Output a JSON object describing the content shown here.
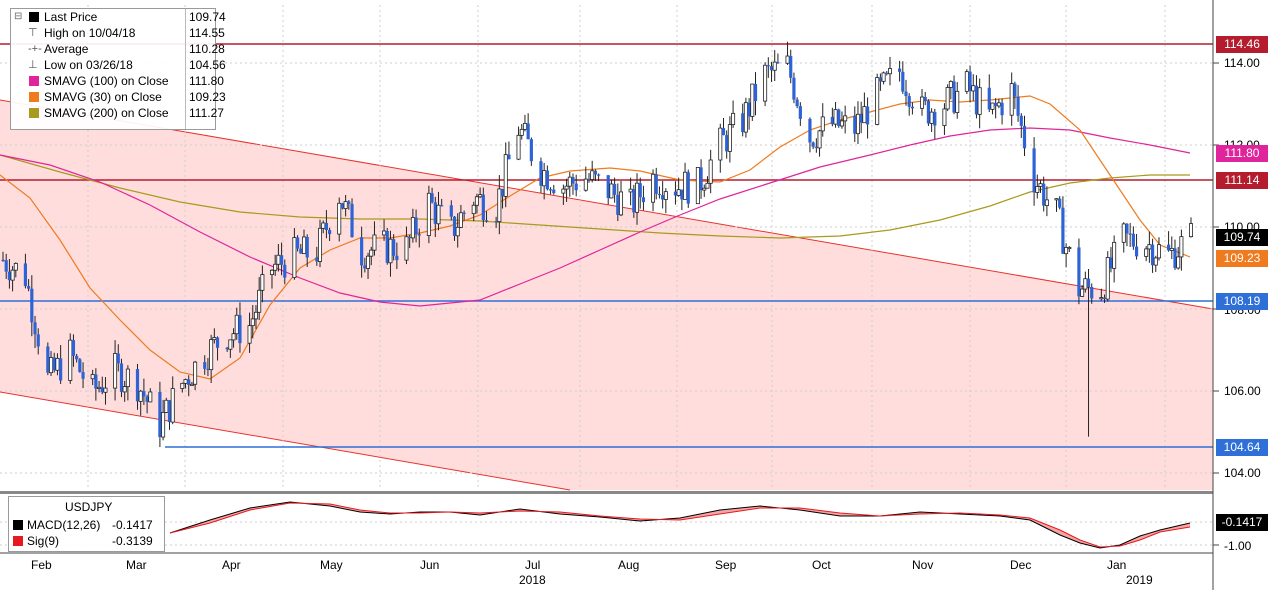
{
  "legend": {
    "last_price": {
      "label": "Last Price",
      "value": "109.74",
      "color": "#000000"
    },
    "high": {
      "label": "High on 10/04/18",
      "value": "114.55"
    },
    "average": {
      "label": "Average",
      "value": "110.28"
    },
    "low": {
      "label": "Low on 03/26/18",
      "value": "104.56"
    },
    "sma100": {
      "label": "SMAVG (100)  on Close",
      "value": "111.80",
      "color": "#e0249c"
    },
    "sma30": {
      "label": "SMAVG (30)  on Close",
      "value": "109.23",
      "color": "#f07a1e"
    },
    "sma200": {
      "label": "SMAVG (200)  on Close",
      "value": "111.27",
      "color": "#a89a1a"
    }
  },
  "macd_legend": {
    "title": "USDJPY",
    "macd": {
      "label": "MACD(12,26)",
      "value": "-0.1417",
      "color": "#000000"
    },
    "sig": {
      "label": "Sig(9)",
      "value": "-0.3139",
      "color": "#e8191e"
    }
  },
  "y_axis": {
    "ticks": [
      "114.00",
      "106.00",
      "104.00"
    ],
    "partial_ticks": [
      "112.00",
      "110.00",
      "108.00"
    ],
    "macd_ticks": [
      "-1.00"
    ]
  },
  "tags": {
    "h_114_46": "114.46",
    "sma100": "111.80",
    "h_111_14": "111.14",
    "last": "109.74",
    "sma30": "109.23",
    "h_108_19": "108.19",
    "h_104_64": "104.64",
    "macd": "-0.1417"
  },
  "x_axis": {
    "months": [
      "Feb",
      "Mar",
      "Apr",
      "May",
      "Jun",
      "Jul",
      "Aug",
      "Sep",
      "Oct",
      "Nov",
      "Dec",
      "Jan"
    ],
    "years": [
      "2018",
      "2019"
    ]
  },
  "colors": {
    "candle": "#2e63d6",
    "resistance": "#b51d2e",
    "support": "#2f6fd8",
    "channel_fill": "#ffd7d7",
    "channel_line": "#e8332c"
  },
  "chart_data": {
    "type": "candlestick",
    "instrument": "USDJPY",
    "horizontal_levels": [
      114.46,
      111.14,
      108.19,
      104.64
    ],
    "price_range": [
      103.6,
      115.4
    ],
    "closes_sampled_weekly": [
      {
        "x": "2018-01-29",
        "close": 109.2
      },
      {
        "x": "2018-02-05",
        "close": 108.8
      },
      {
        "x": "2018-02-12",
        "close": 106.3
      },
      {
        "x": "2018-02-19",
        "close": 106.9
      },
      {
        "x": "2018-02-26",
        "close": 106.0
      },
      {
        "x": "2018-03-05",
        "close": 106.5
      },
      {
        "x": "2018-03-12",
        "close": 106.2
      },
      {
        "x": "2018-03-19",
        "close": 105.2
      },
      {
        "x": "2018-03-26",
        "close": 106.2
      },
      {
        "x": "2018-04-02",
        "close": 106.9
      },
      {
        "x": "2018-04-09",
        "close": 107.4
      },
      {
        "x": "2018-04-16",
        "close": 107.6
      },
      {
        "x": "2018-04-23",
        "close": 109.0
      },
      {
        "x": "2018-04-30",
        "close": 109.3
      },
      {
        "x": "2018-05-07",
        "close": 109.4
      },
      {
        "x": "2018-05-14",
        "close": 110.8
      },
      {
        "x": "2018-05-21",
        "close": 109.4
      },
      {
        "x": "2018-05-28",
        "close": 109.5
      },
      {
        "x": "2018-06-04",
        "close": 109.5
      },
      {
        "x": "2018-06-11",
        "close": 110.6
      },
      {
        "x": "2018-06-18",
        "close": 109.9
      },
      {
        "x": "2018-06-25",
        "close": 110.7
      },
      {
        "x": "2018-07-02",
        "close": 110.5
      },
      {
        "x": "2018-07-09",
        "close": 112.4
      },
      {
        "x": "2018-07-16",
        "close": 111.4
      },
      {
        "x": "2018-07-23",
        "close": 111.0
      },
      {
        "x": "2018-07-30",
        "close": 111.2
      },
      {
        "x": "2018-08-06",
        "close": 110.9
      },
      {
        "x": "2018-08-13",
        "close": 110.5
      },
      {
        "x": "2018-08-20",
        "close": 111.2
      },
      {
        "x": "2018-08-27",
        "close": 111.0
      },
      {
        "x": "2018-09-03",
        "close": 111.0
      },
      {
        "x": "2018-09-10",
        "close": 112.0
      },
      {
        "x": "2018-09-17",
        "close": 112.6
      },
      {
        "x": "2018-09-24",
        "close": 113.7
      },
      {
        "x": "2018-10-01",
        "close": 113.9
      },
      {
        "x": "2018-10-08",
        "close": 112.2
      },
      {
        "x": "2018-10-15",
        "close": 112.5
      },
      {
        "x": "2018-10-22",
        "close": 112.4
      },
      {
        "x": "2018-10-29",
        "close": 113.2
      },
      {
        "x": "2018-11-05",
        "close": 113.8
      },
      {
        "x": "2018-11-12",
        "close": 112.8
      },
      {
        "x": "2018-11-19",
        "close": 113.0
      },
      {
        "x": "2018-11-26",
        "close": 113.4
      },
      {
        "x": "2018-12-03",
        "close": 112.7
      },
      {
        "x": "2018-12-10",
        "close": 113.3
      },
      {
        "x": "2018-12-17",
        "close": 111.2
      },
      {
        "x": "2018-12-24",
        "close": 110.3
      },
      {
        "x": "2018-12-31",
        "close": 108.5
      },
      {
        "x": "2019-01-07",
        "close": 108.5
      },
      {
        "x": "2019-01-14",
        "close": 109.7
      },
      {
        "x": "2019-01-21",
        "close": 109.6
      },
      {
        "x": "2019-01-28",
        "close": 109.3
      },
      {
        "x": "2019-02-04",
        "close": 109.74
      }
    ],
    "flash_crash_low": {
      "x": "2019-01-03",
      "low": 104.9
    }
  }
}
